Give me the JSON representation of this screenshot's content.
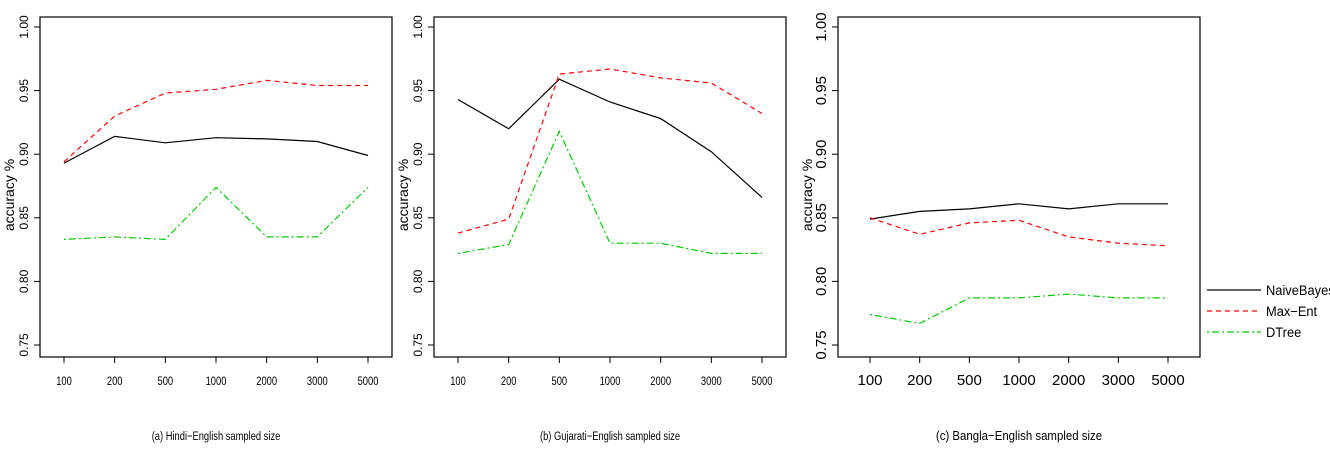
{
  "legend": {
    "entries": [
      {
        "label": "NaiveBayes",
        "color": "#000000",
        "dash": "solid"
      },
      {
        "label": "Max−Ent",
        "color": "#ff0000",
        "dash": "dashed"
      },
      {
        "label": "DTree",
        "color": "#00cc00",
        "dash": "dotdash"
      }
    ]
  },
  "chart_data": [
    {
      "type": "line",
      "xlabel": "(a) Hindi−English sampled size",
      "ylabel": "accuracy %",
      "categories": [
        "100",
        "200",
        "500",
        "1000",
        "2000",
        "3000",
        "5000"
      ],
      "yticks": [
        "0.75",
        "0.80",
        "0.85",
        "0.90",
        "0.95",
        "1.00"
      ],
      "ylim": [
        0.75,
        1.0
      ],
      "series": [
        {
          "name": "NaiveBayes",
          "values": [
            0.893,
            0.914,
            0.909,
            0.913,
            0.912,
            0.91,
            0.899
          ]
        },
        {
          "name": "Max−Ent",
          "values": [
            0.894,
            0.93,
            0.948,
            0.951,
            0.958,
            0.954,
            0.954
          ]
        },
        {
          "name": "DTree",
          "values": [
            0.833,
            0.835,
            0.833,
            0.874,
            0.835,
            0.835,
            0.874
          ]
        }
      ]
    },
    {
      "type": "line",
      "xlabel": "(b) Gujarati−English sampled size",
      "ylabel": "accuracy %",
      "categories": [
        "100",
        "200",
        "500",
        "1000",
        "2000",
        "3000",
        "5000"
      ],
      "yticks": [
        "0.75",
        "0.80",
        "0.85",
        "0.90",
        "0.95",
        "1.00"
      ],
      "ylim": [
        0.75,
        1.0
      ],
      "series": [
        {
          "name": "NaiveBayes",
          "values": [
            0.943,
            0.92,
            0.959,
            0.941,
            0.928,
            0.902,
            0.866
          ]
        },
        {
          "name": "Max−Ent",
          "values": [
            0.838,
            0.849,
            0.963,
            0.967,
            0.96,
            0.956,
            0.932
          ]
        },
        {
          "name": "DTree",
          "values": [
            0.822,
            0.829,
            0.918,
            0.83,
            0.83,
            0.822,
            0.822
          ]
        }
      ]
    },
    {
      "type": "line",
      "xlabel": "(c) Bangla−English sampled size",
      "ylabel": "accuracy %",
      "categories": [
        "100",
        "200",
        "500",
        "1000",
        "2000",
        "3000",
        "5000"
      ],
      "yticks": [
        "0.75",
        "0.80",
        "0.85",
        "0.90",
        "0.95",
        "1.00"
      ],
      "ylim": [
        0.75,
        1.0
      ],
      "series": [
        {
          "name": "NaiveBayes",
          "values": [
            0.849,
            0.855,
            0.857,
            0.861,
            0.857,
            0.861,
            0.861
          ]
        },
        {
          "name": "Max−Ent",
          "values": [
            0.85,
            0.837,
            0.846,
            0.848,
            0.835,
            0.83,
            0.828
          ]
        },
        {
          "name": "DTree",
          "values": [
            0.774,
            0.767,
            0.787,
            0.787,
            0.79,
            0.787,
            0.787
          ]
        }
      ]
    }
  ]
}
